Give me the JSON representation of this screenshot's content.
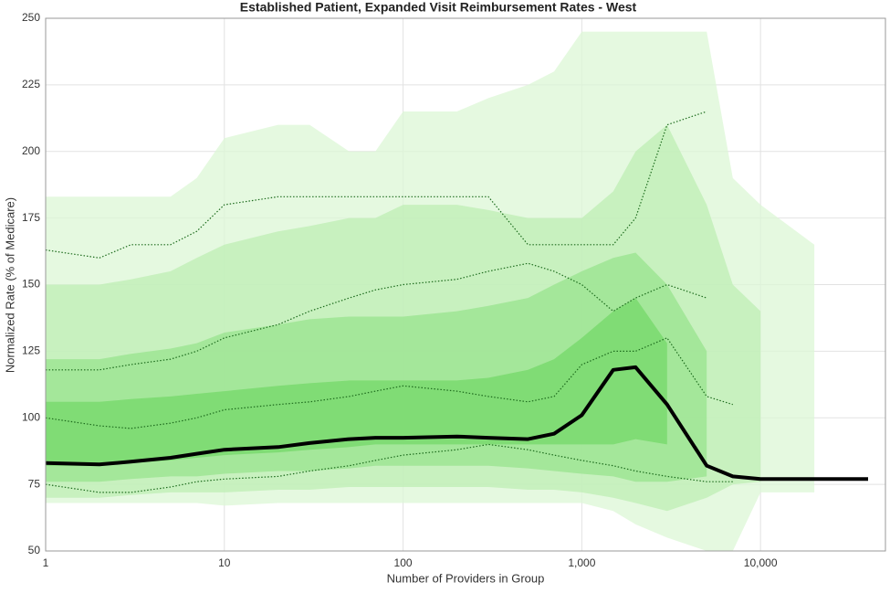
{
  "chart_data": {
    "type": "fan",
    "title": "Established Patient, Expanded Visit Reimbursement Rates - West",
    "x_label": "Number of Providers in Group",
    "y_label": "Normalized Rate (% of Medicare)",
    "log_x": true,
    "grid": true,
    "xlim": [
      1,
      50000
    ],
    "xticks": [
      1,
      10,
      100,
      {
        "value": 1000,
        "label": "1,000"
      },
      {
        "value": 10000,
        "label": "10,000"
      }
    ],
    "ylim": [
      50,
      250
    ],
    "yticks": [
      50,
      75,
      100,
      125,
      150,
      175,
      200,
      225,
      250
    ],
    "x": [
      1,
      2,
      3,
      5,
      7,
      10,
      20,
      30,
      50,
      70,
      100,
      200,
      300,
      500,
      700,
      1000,
      1500,
      2000,
      3000,
      5000,
      7000,
      10000,
      20000,
      40000
    ],
    "bands": [
      {
        "color": "#dcf7d6",
        "lower": [
          68,
          68,
          68,
          68,
          68,
          67,
          68,
          68,
          68,
          68,
          68,
          68,
          68,
          68,
          68,
          68,
          65,
          60,
          55,
          50,
          50,
          72,
          72,
          null
        ],
        "upper": [
          183,
          183,
          183,
          183,
          190,
          205,
          210,
          210,
          200,
          200,
          215,
          215,
          220,
          225,
          230,
          245,
          245,
          245,
          245,
          245,
          190,
          180,
          165,
          null
        ]
      },
      {
        "color": "#bdeeb4",
        "lower": [
          70,
          70,
          71,
          72,
          72,
          72,
          73,
          73,
          74,
          74,
          74,
          74,
          74,
          73,
          73,
          72,
          70,
          68,
          65,
          70,
          75,
          76,
          null,
          null
        ],
        "upper": [
          150,
          150,
          152,
          155,
          160,
          165,
          170,
          172,
          175,
          175,
          180,
          180,
          178,
          175,
          175,
          175,
          185,
          200,
          210,
          180,
          150,
          140,
          null,
          null
        ]
      },
      {
        "color": "#98e38e",
        "lower": [
          76,
          76,
          77,
          78,
          78,
          79,
          80,
          80,
          81,
          82,
          82,
          82,
          82,
          81,
          80,
          79,
          78,
          76,
          76,
          78,
          null,
          null,
          null,
          null
        ],
        "upper": [
          122,
          122,
          124,
          126,
          128,
          132,
          135,
          137,
          138,
          138,
          138,
          140,
          142,
          145,
          150,
          155,
          160,
          162,
          150,
          125,
          null,
          null,
          null,
          null
        ]
      },
      {
        "color": "#74d868",
        "lower": [
          82,
          82,
          83,
          84,
          85,
          86,
          87,
          88,
          89,
          90,
          90,
          90,
          90,
          90,
          90,
          90,
          90,
          92,
          90,
          null,
          null,
          null,
          null,
          null
        ],
        "upper": [
          106,
          106,
          107,
          108,
          109,
          110,
          112,
          113,
          114,
          114,
          114,
          114,
          115,
          118,
          122,
          130,
          140,
          145,
          128,
          null,
          null,
          null,
          null,
          null
        ]
      }
    ],
    "dotted": [
      {
        "color": "#1d6b1d",
        "values": [
          163,
          160,
          165,
          165,
          170,
          180,
          183,
          183,
          183,
          183,
          183,
          183,
          183,
          165,
          165,
          165,
          165,
          175,
          210,
          215,
          null,
          null,
          null,
          null
        ]
      },
      {
        "color": "#1d6b1d",
        "values": [
          118,
          118,
          120,
          122,
          125,
          130,
          135,
          140,
          145,
          148,
          150,
          152,
          155,
          158,
          155,
          150,
          140,
          145,
          150,
          145,
          null,
          null,
          null,
          null
        ]
      },
      {
        "color": "#1d6b1d",
        "values": [
          100,
          97,
          96,
          98,
          100,
          103,
          105,
          106,
          108,
          110,
          112,
          110,
          108,
          106,
          108,
          120,
          125,
          125,
          130,
          108,
          105,
          null,
          null,
          null
        ]
      },
      {
        "color": "#1d6b1d",
        "values": [
          75,
          72,
          72,
          74,
          76,
          77,
          78,
          80,
          82,
          84,
          86,
          88,
          90,
          88,
          86,
          84,
          82,
          80,
          78,
          76,
          76,
          null,
          null,
          null
        ]
      }
    ],
    "series": [
      {
        "color": "#000000",
        "values": [
          83,
          82.5,
          83.5,
          85,
          86.5,
          88,
          89,
          90.5,
          92,
          92.5,
          92.5,
          93,
          92.5,
          92,
          94,
          101,
          118,
          119,
          105,
          82,
          78,
          77,
          77,
          77
        ]
      }
    ]
  }
}
